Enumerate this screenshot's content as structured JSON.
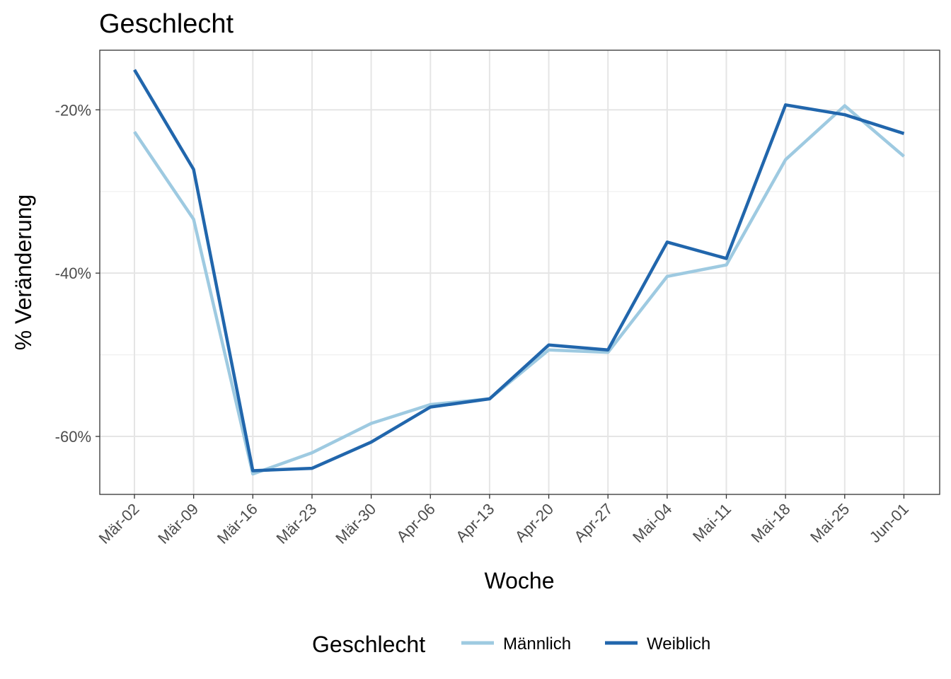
{
  "chart_data": {
    "type": "line",
    "title": "Geschlecht",
    "xlabel": "Woche",
    "ylabel": "% Veränderung",
    "categories": [
      "Mär-02",
      "Mär-09",
      "Mär-16",
      "Mär-23",
      "Mär-30",
      "Apr-06",
      "Apr-13",
      "Apr-20",
      "Apr-27",
      "Mai-04",
      "Mai-11",
      "Mai-18",
      "Mai-25",
      "Jun-01"
    ],
    "ylim": [
      -67.1,
      -12.7
    ],
    "yticks": [
      -20,
      -40,
      -60
    ],
    "ytick_labels": [
      "-20%",
      "-40%",
      "-60%"
    ],
    "grid": true,
    "legend": {
      "title": "Geschlecht",
      "position": "bottom"
    },
    "series": [
      {
        "name": "Männlich",
        "color": "#9ecae1",
        "values": [
          -22.7,
          -33.4,
          -64.6,
          -62.0,
          -58.4,
          -56.1,
          -55.4,
          -49.4,
          -49.7,
          -40.4,
          -39.0,
          -26.1,
          -19.5,
          -25.7
        ]
      },
      {
        "name": "Weiblich",
        "color": "#2166ac",
        "values": [
          -15.1,
          -27.3,
          -64.2,
          -63.9,
          -60.7,
          -56.4,
          -55.4,
          -48.8,
          -49.4,
          -36.2,
          -38.2,
          -19.4,
          -20.6,
          -22.9
        ]
      }
    ]
  }
}
